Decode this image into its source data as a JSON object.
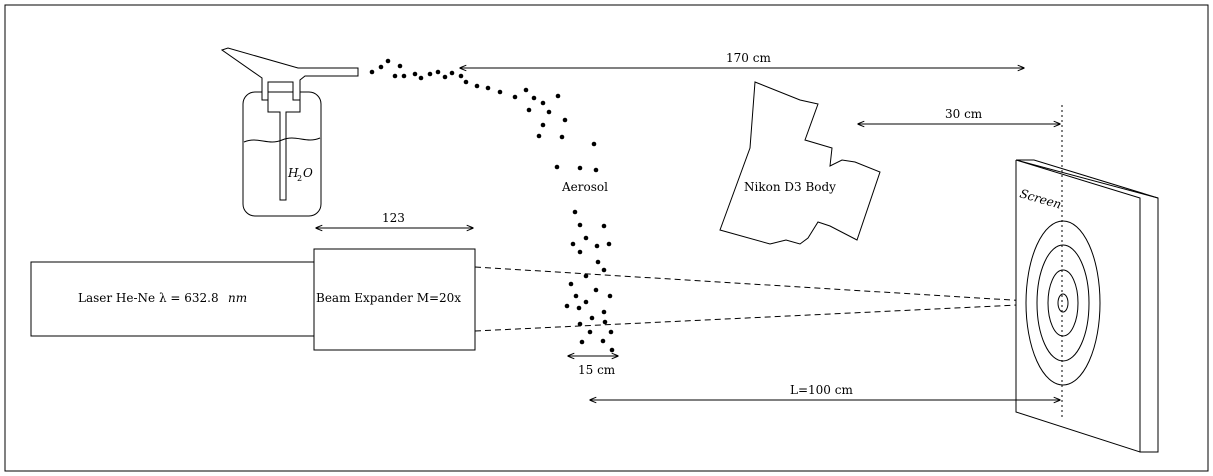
{
  "diagram": {
    "laser_label": "Laser He-Ne λ = 632.8",
    "laser_unit": "nm",
    "expander_label": "Beam Expander M=20x",
    "expander_width_label": "123",
    "bottle_label_main": "H",
    "bottle_label_sub": "2",
    "bottle_label_end": "O",
    "aerosol_label": "Aerosol",
    "aerosol_width_label": "15 cm",
    "camera_label": "Nikon D3 Body",
    "screen_label": "Screen",
    "dist_170_label": "170 cm",
    "dist_30_label": "30 cm",
    "dist_L_label": "L=100 cm"
  }
}
